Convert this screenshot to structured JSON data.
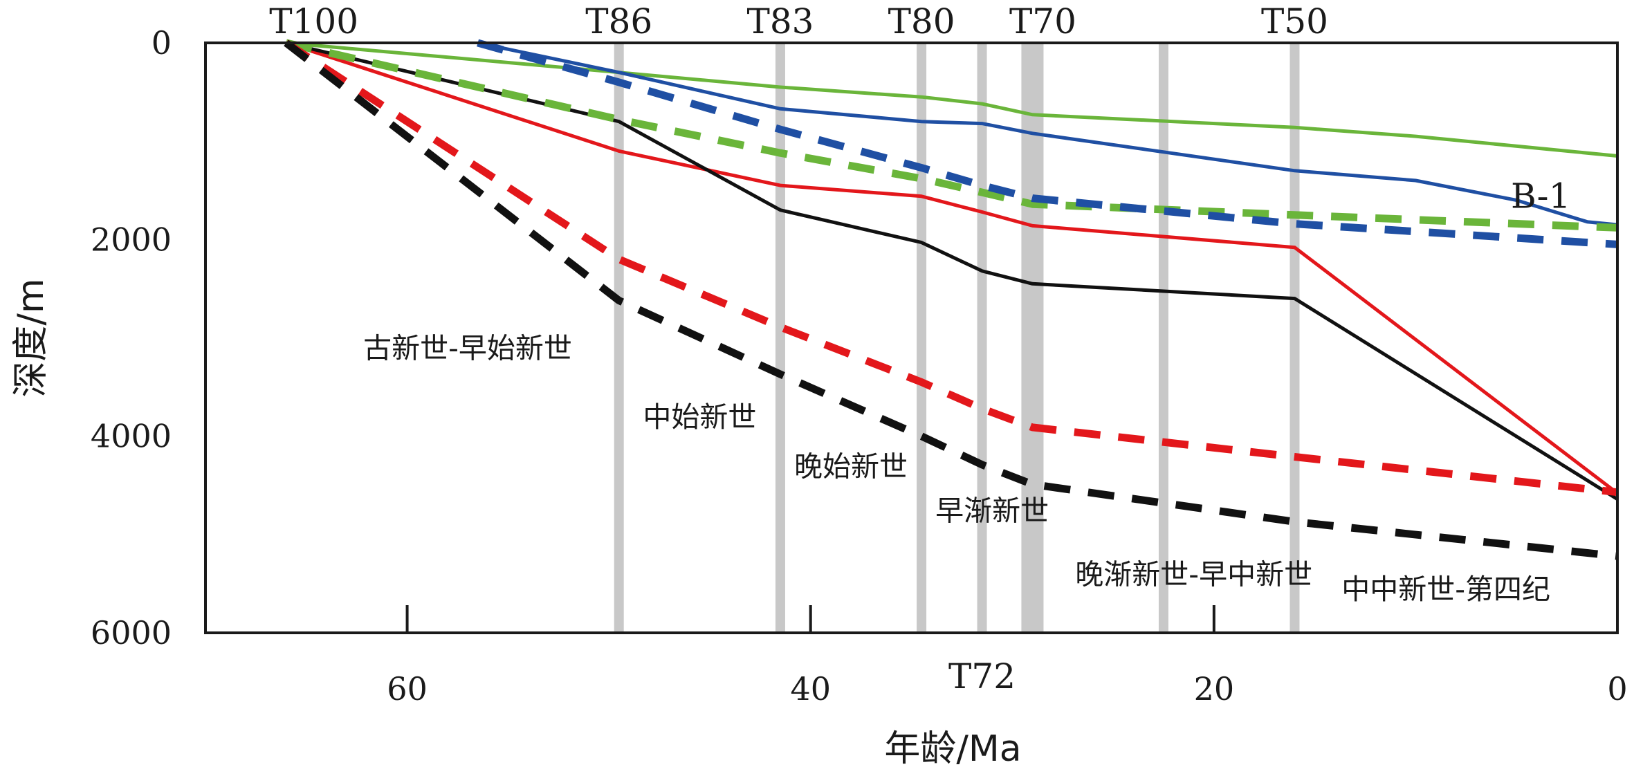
{
  "chart_data": {
    "type": "line",
    "xlabel": "年龄/Ma",
    "ylabel": "深度/m",
    "xlim": [
      70,
      0
    ],
    "ylim": [
      0,
      6000
    ],
    "x_ticks": [
      60,
      40,
      20,
      0
    ],
    "y_ticks": [
      0,
      2000,
      4000,
      6000
    ],
    "horizons": [
      {
        "label": "T100",
        "age": 66,
        "bar": false,
        "label_pos": "top"
      },
      {
        "label": "T86",
        "age": 49.5,
        "bar": true,
        "label_pos": "top"
      },
      {
        "label": "T83",
        "age": 41.5,
        "bar": true,
        "label_pos": "top"
      },
      {
        "label": "T80",
        "age": 34.5,
        "bar": true,
        "label_pos": "top"
      },
      {
        "label": "T72",
        "age": 31.5,
        "bar": true,
        "label_pos": "bottom"
      },
      {
        "label": "T70",
        "age": 29,
        "bar": true,
        "wide": true,
        "label_pos": "top"
      },
      {
        "label": "",
        "age": 22.5,
        "bar": true
      },
      {
        "label": "T50",
        "age": 16,
        "bar": true,
        "label_pos": "top"
      }
    ],
    "periods": [
      {
        "label": "古新世-早始新世",
        "age": 57,
        "depth": 3100
      },
      {
        "label": "中始新世",
        "age": 45.5,
        "depth": 3800
      },
      {
        "label": "晚始新世",
        "age": 38,
        "depth": 4300
      },
      {
        "label": "早渐新世",
        "age": 31,
        "depth": 4750
      },
      {
        "label": "晚渐新世-早中新世",
        "age": 21,
        "depth": 5400
      },
      {
        "label": "中中新世-第四纪",
        "age": 8.5,
        "depth": 5550
      }
    ],
    "well_label": {
      "text": "B-1",
      "age": 3.8,
      "depth": 1550
    },
    "series": [
      {
        "color": "#6ab53a",
        "style": "solid",
        "width": 5,
        "x": [
          66,
          49.5,
          41.5,
          34.5,
          31.5,
          29,
          16,
          10,
          0
        ],
        "y": [
          0,
          300,
          450,
          550,
          620,
          730,
          860,
          950,
          1150
        ]
      },
      {
        "color": "#1f4fa3",
        "style": "solid",
        "width": 5,
        "x": [
          56.5,
          49.5,
          41.5,
          34.5,
          31.5,
          29,
          16,
          10,
          5,
          1.5,
          0
        ],
        "y": [
          0,
          300,
          670,
          800,
          820,
          920,
          1300,
          1400,
          1600,
          1820,
          1850
        ]
      },
      {
        "color": "#e3171b",
        "style": "solid",
        "width": 5,
        "x": [
          66,
          49.5,
          41.5,
          34.5,
          31.5,
          29,
          16,
          0
        ],
        "y": [
          0,
          1100,
          1450,
          1560,
          1720,
          1860,
          2080,
          4580
        ]
      },
      {
        "color": "#111111",
        "style": "solid",
        "width": 5,
        "x": [
          66,
          49.5,
          41.5,
          34.5,
          31.5,
          29,
          16,
          0
        ],
        "y": [
          0,
          800,
          1700,
          2030,
          2320,
          2450,
          2600,
          4640
        ]
      },
      {
        "color": "#6ab53a",
        "style": "dashed",
        "width": 11,
        "x": [
          66,
          49.5,
          41.5,
          34.5,
          31.5,
          29,
          16,
          0
        ],
        "y": [
          0,
          780,
          1120,
          1380,
          1520,
          1640,
          1750,
          1880
        ]
      },
      {
        "color": "#1f4fa3",
        "style": "dashed",
        "width": 11,
        "x": [
          56.5,
          49.5,
          41.5,
          34.5,
          31.5,
          29,
          16,
          0
        ],
        "y": [
          0,
          400,
          880,
          1270,
          1450,
          1580,
          1840,
          2050
        ]
      },
      {
        "color": "#e3171b",
        "style": "dashed",
        "width": 11,
        "x": [
          66,
          49.5,
          41.5,
          34.5,
          31.5,
          29,
          16,
          0
        ],
        "y": [
          0,
          2200,
          2890,
          3450,
          3720,
          3910,
          4210,
          4570
        ]
      },
      {
        "color": "#111111",
        "style": "dashed",
        "width": 11,
        "x": [
          66,
          49.5,
          41.5,
          34.5,
          31.5,
          29,
          16,
          0
        ],
        "y": [
          0,
          2620,
          3370,
          4000,
          4290,
          4490,
          4870,
          5220
        ]
      }
    ]
  }
}
